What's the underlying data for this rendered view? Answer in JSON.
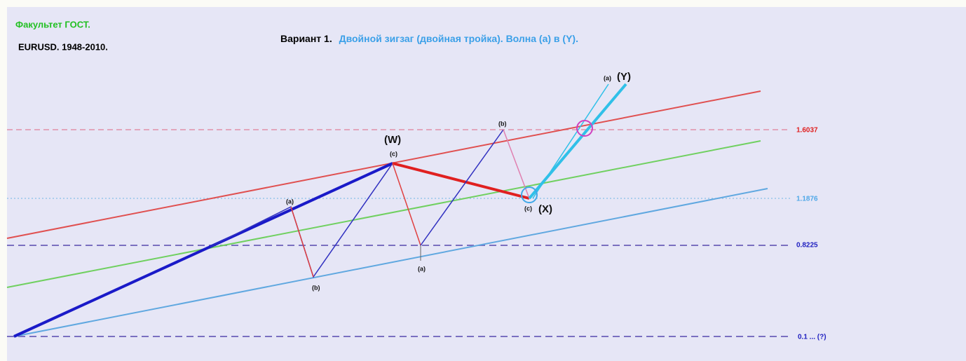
{
  "header": {
    "faculty": "Факультет ГОСТ.",
    "instrument": "EURUSD. 1948-2010."
  },
  "title": {
    "variant": "Вариант 1.",
    "description": "Двойной зигзаг (двойная тройка).  Волна (а) в (Y)."
  },
  "levels": [
    "1.6037",
    "1.1876",
    "0.8225",
    "0.1 ... (?)"
  ],
  "wave_labels": [
    "(a)",
    "(b)",
    "(W)",
    "(c)",
    "(a)",
    "(b)",
    "(c)",
    "(X)",
    "(a)",
    "(Y)"
  ]
}
